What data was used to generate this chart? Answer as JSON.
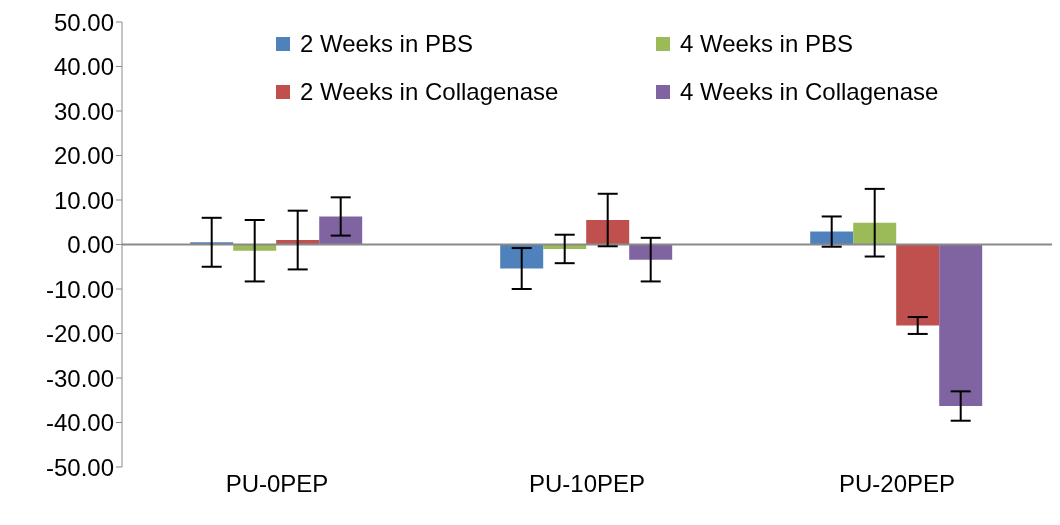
{
  "chart_data": {
    "type": "bar",
    "categories": [
      "PU-0PEP",
      "PU-10PEP",
      "PU-20PEP"
    ],
    "series": [
      {
        "name": "2 Weeks in PBS",
        "color": "#4f81bd",
        "values": [
          0.5,
          -5.4,
          2.9
        ],
        "errors": [
          5.5,
          4.6,
          3.4
        ]
      },
      {
        "name": "4 Weeks in PBS",
        "color": "#9bbb59",
        "values": [
          -1.4,
          -1.0,
          4.9
        ],
        "errors": [
          6.9,
          3.2,
          7.6
        ]
      },
      {
        "name": "2 Weeks in Collagenase",
        "color": "#c0504d",
        "values": [
          1.0,
          5.5,
          -18.2
        ],
        "errors": [
          6.6,
          5.9,
          1.9
        ]
      },
      {
        "name": "4 Weeks in Collagenase",
        "color": "#8064a2",
        "values": [
          6.3,
          -3.4,
          -36.3
        ],
        "errors": [
          4.3,
          4.9,
          3.3
        ]
      }
    ],
    "ylim": [
      -50,
      50
    ],
    "yticks": [
      {
        "value": -50,
        "label": "-50.00"
      },
      {
        "value": -40,
        "label": "-40.00"
      },
      {
        "value": -30,
        "label": "-30.00"
      },
      {
        "value": -20,
        "label": "-20.00"
      },
      {
        "value": -10,
        "label": "-10.00"
      },
      {
        "value": 0,
        "label": "0.00"
      },
      {
        "value": 10,
        "label": "10.00"
      },
      {
        "value": 20,
        "label": "20.00"
      },
      {
        "value": 30,
        "label": "30.00"
      },
      {
        "value": 40,
        "label": "40.00"
      },
      {
        "value": 50,
        "label": "50.00"
      }
    ],
    "legend": "top right"
  }
}
